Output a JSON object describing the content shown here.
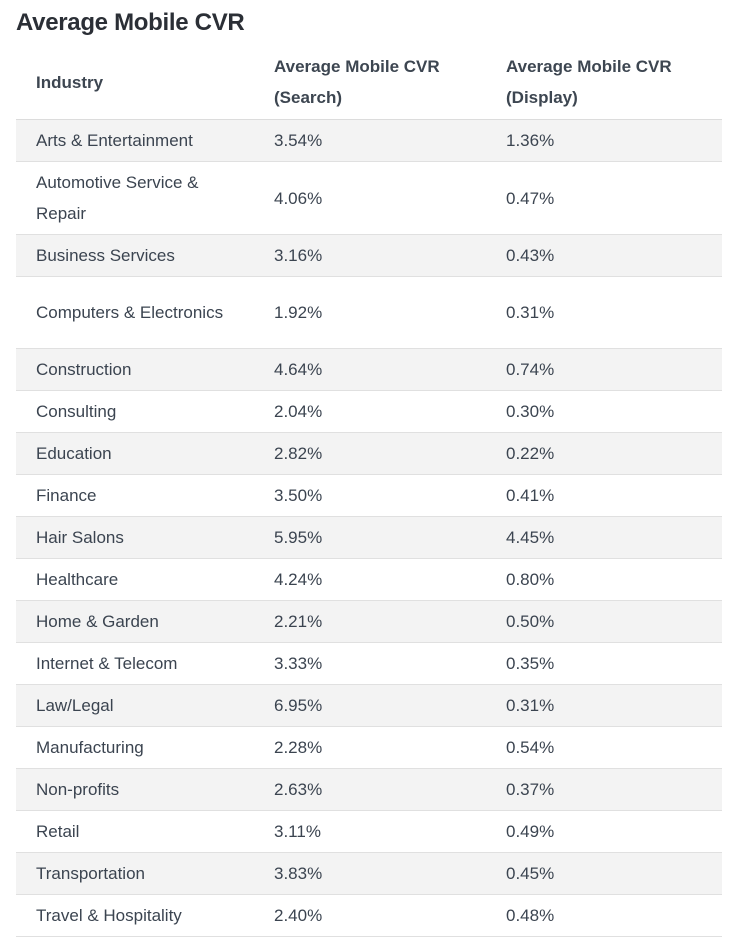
{
  "title": "Average Mobile CVR",
  "table": {
    "headers": [
      "Industry",
      "Average Mobile CVR (Search)",
      "Average Mobile CVR (Display)"
    ],
    "rows": [
      {
        "industry": "Arts & Entertainment",
        "search": "3.54%",
        "display": "1.36%"
      },
      {
        "industry": "Automotive Service & Repair",
        "search": "4.06%",
        "display": "0.47%"
      },
      {
        "industry": "Business Services",
        "search": "3.16%",
        "display": "0.43%"
      },
      {
        "industry": "Computers & Electronics",
        "search": "1.92%",
        "display": "0.31%"
      },
      {
        "industry": "Construction",
        "search": "4.64%",
        "display": "0.74%"
      },
      {
        "industry": "Consulting",
        "search": "2.04%",
        "display": "0.30%"
      },
      {
        "industry": "Education",
        "search": "2.82%",
        "display": "0.22%"
      },
      {
        "industry": "Finance",
        "search": "3.50%",
        "display": "0.41%"
      },
      {
        "industry": "Hair Salons",
        "search": "5.95%",
        "display": "4.45%"
      },
      {
        "industry": "Healthcare",
        "search": "4.24%",
        "display": "0.80%"
      },
      {
        "industry": "Home & Garden",
        "search": "2.21%",
        "display": "0.50%"
      },
      {
        "industry": "Internet & Telecom",
        "search": "3.33%",
        "display": "0.35%"
      },
      {
        "industry": "Law/Legal",
        "search": "6.95%",
        "display": "0.31%"
      },
      {
        "industry": "Manufacturing",
        "search": "2.28%",
        "display": "0.54%"
      },
      {
        "industry": "Non-profits",
        "search": "2.63%",
        "display": "0.37%"
      },
      {
        "industry": "Retail",
        "search": "3.11%",
        "display": "0.49%"
      },
      {
        "industry": "Transportation",
        "search": "3.83%",
        "display": "0.45%"
      },
      {
        "industry": "Travel & Hospitality",
        "search": "2.40%",
        "display": "0.48%"
      }
    ]
  }
}
